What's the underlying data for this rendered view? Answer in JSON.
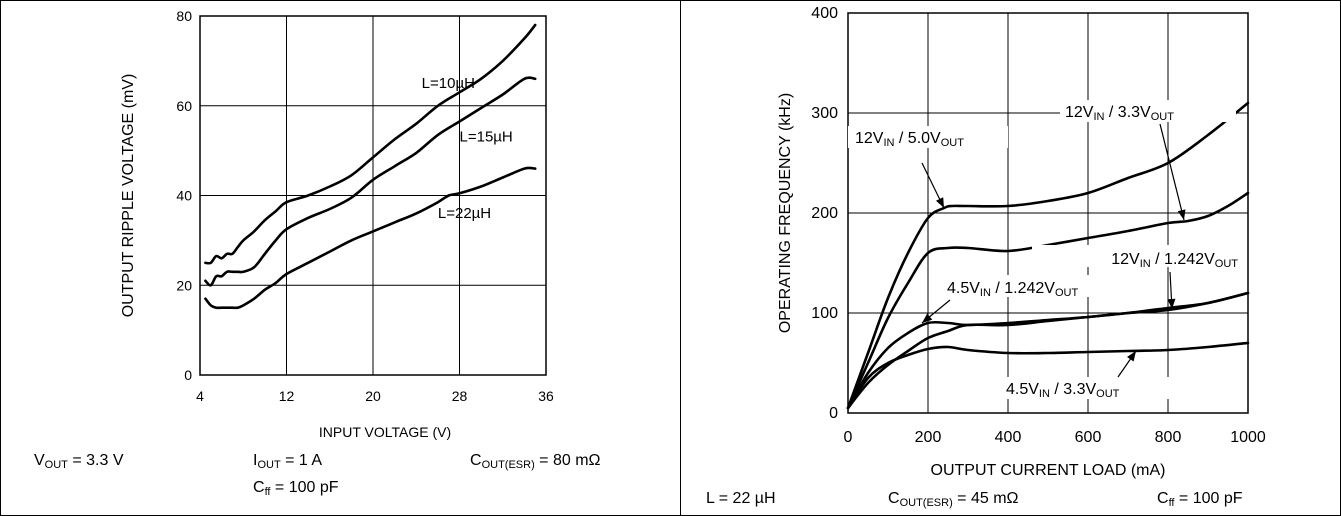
{
  "left_conditions": {
    "vout": {
      "main": "V",
      "sub": "OUT",
      "rest": " = 3.3 V"
    },
    "iout": {
      "main": "I",
      "sub": "OUT",
      "rest": " = 1 A"
    },
    "cout": {
      "main": "C",
      "sub": "OUT(ESR)",
      "rest": " = 80 mΩ"
    },
    "cff": {
      "main": "C",
      "sub": "ff",
      "rest": " = 100 pF"
    }
  },
  "right_conditions": {
    "l": {
      "text": "L = 22 µH"
    },
    "cout": {
      "main": "C",
      "sub": "OUT(ESR)",
      "rest": " = 45 mΩ"
    },
    "cff": {
      "main": "C",
      "sub": "ff",
      "rest": " = 100 pF"
    }
  },
  "chart_data": [
    {
      "type": "line",
      "title": "",
      "xlabel": "INPUT VOLTAGE (V)",
      "ylabel": "OUTPUT RIPPLE VOLTAGE (mV)",
      "xlim": [
        4,
        36
      ],
      "ylim": [
        0,
        80
      ],
      "xticks": [
        4,
        12,
        20,
        28,
        36
      ],
      "yticks": [
        0,
        20,
        40,
        60,
        80
      ],
      "grid": true,
      "series": [
        {
          "name": "L=10µH",
          "x": [
            4.5,
            5,
            5.5,
            6,
            6.5,
            7,
            7.5,
            8,
            9,
            10,
            11,
            12,
            14,
            16,
            18,
            20,
            22,
            24,
            26,
            28,
            30,
            32,
            34,
            35
          ],
          "y": [
            25,
            25,
            26.5,
            26,
            27,
            27,
            28.5,
            30,
            32,
            34.5,
            36.5,
            38.5,
            40,
            42,
            44.5,
            48.5,
            52.5,
            56,
            60,
            63,
            66,
            70,
            75,
            78
          ]
        },
        {
          "name": "L=15µH",
          "x": [
            4.5,
            5,
            5.5,
            6,
            6.5,
            7,
            7.5,
            8,
            9,
            10,
            11,
            12,
            14,
            16,
            18,
            20,
            22,
            24,
            26,
            28,
            30,
            32,
            34,
            35
          ],
          "y": [
            21,
            20,
            22,
            22,
            23,
            23,
            23,
            23,
            24,
            27,
            30,
            32.5,
            35,
            37,
            39.5,
            43.5,
            46.5,
            49.5,
            53.5,
            56.5,
            59.5,
            62.5,
            66,
            66
          ]
        },
        {
          "name": "L=22µH",
          "x": [
            4.5,
            5,
            5.5,
            6,
            6.5,
            7,
            7.5,
            8,
            9,
            10,
            11,
            12,
            14,
            16,
            18,
            20,
            22,
            24,
            26,
            27,
            28,
            30,
            32,
            34,
            35
          ],
          "y": [
            17,
            15.5,
            15,
            15,
            15,
            15,
            15,
            15.5,
            17,
            19,
            20.5,
            22.5,
            25,
            27.5,
            30,
            32,
            34,
            36,
            38.5,
            40,
            40.5,
            42,
            44,
            46,
            46
          ]
        }
      ],
      "annotations": [
        {
          "text": "L=10µH",
          "x": 24.5,
          "y": 64
        },
        {
          "text": "L=15µH",
          "x": 28,
          "y": 52
        },
        {
          "text": "L=22µH",
          "x": 26,
          "y": 35
        }
      ]
    },
    {
      "type": "line",
      "title": "",
      "xlabel": "OUTPUT CURRENT LOAD (mA)",
      "ylabel": "OPERATING FREQUENCY  (kHz)",
      "xlim": [
        0,
        1000
      ],
      "ylim": [
        0,
        400
      ],
      "xticks": [
        0,
        200,
        400,
        600,
        800,
        1000
      ],
      "yticks": [
        0,
        100,
        200,
        300,
        400
      ],
      "grid": true,
      "series": [
        {
          "name": "12VIN / 3.3VOUT",
          "x": [
            0,
            50,
            100,
            150,
            200,
            250,
            300,
            400,
            500,
            600,
            700,
            800,
            850,
            900,
            950,
            1000
          ],
          "y": [
            5,
            50,
            95,
            130,
            160,
            165,
            165,
            162,
            168,
            175,
            182,
            190,
            192,
            197,
            207,
            220
          ]
        },
        {
          "name": "12VIN / 5.0VOUT",
          "x": [
            0,
            50,
            100,
            150,
            200,
            240,
            260,
            300,
            400,
            500,
            600,
            700,
            800,
            900,
            1000
          ],
          "y": [
            5,
            60,
            115,
            160,
            195,
            205,
            207,
            207,
            207,
            212,
            220,
            235,
            250,
            278,
            310
          ]
        },
        {
          "name": "4.5VIN / 1.242VOUT",
          "x": [
            0,
            50,
            100,
            150,
            200,
            250,
            300,
            400,
            500,
            600,
            700,
            800,
            900,
            1000
          ],
          "y": [
            5,
            40,
            65,
            80,
            90,
            90,
            88,
            90,
            93,
            96,
            100,
            103,
            110,
            120
          ]
        },
        {
          "name": "12VIN / 1.242VOUT",
          "x": [
            0,
            50,
            100,
            150,
            200,
            250,
            300,
            400,
            500,
            600,
            700,
            800,
            900,
            1000
          ],
          "y": [
            5,
            30,
            48,
            62,
            75,
            82,
            88,
            88,
            92,
            96,
            100,
            105,
            110,
            120
          ]
        },
        {
          "name": "4.5VIN / 3.3VOUT",
          "x": [
            0,
            50,
            100,
            150,
            200,
            250,
            300,
            400,
            500,
            600,
            700,
            800,
            900,
            1000
          ],
          "y": [
            5,
            35,
            50,
            58,
            64,
            66,
            63,
            60,
            60,
            61,
            62,
            63,
            66,
            70
          ]
        }
      ],
      "annotations": [
        {
          "main": "12V",
          "sub1": "IN",
          "mid": " / 5.0V",
          "sub2": "OUT"
        },
        {
          "main": "12V",
          "sub1": "IN",
          "mid": " / 3.3V",
          "sub2": "OUT"
        },
        {
          "main": "12V",
          "sub1": "IN",
          "mid": " / 1.242V",
          "sub2": "OUT"
        },
        {
          "main": "4.5V",
          "sub1": "IN",
          "mid": " / 1.242V",
          "sub2": "OUT"
        },
        {
          "main": "4.5V",
          "sub1": "IN",
          "mid": " / 3.3V",
          "sub2": "OUT"
        }
      ]
    }
  ]
}
